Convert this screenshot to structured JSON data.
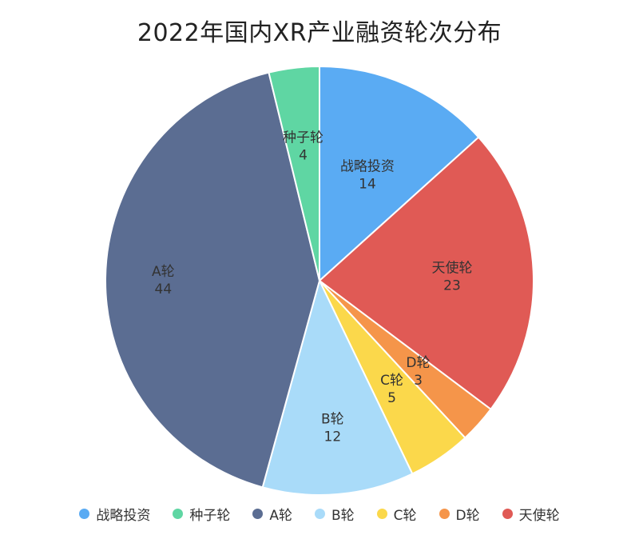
{
  "chart_data": {
    "type": "pie",
    "title": "2022年国内XR产业融资轮次分布",
    "categories": [
      "战略投资",
      "天使轮",
      "D轮",
      "C轮",
      "B轮",
      "A轮",
      "种子轮"
    ],
    "values": [
      14,
      23,
      3,
      5,
      12,
      44,
      4
    ],
    "colors": [
      "#5aabf3",
      "#e05a55",
      "#f5954a",
      "#fbd84b",
      "#a9dbf9",
      "#5b6d92",
      "#5fd6a3"
    ],
    "data_labels": true,
    "legend": {
      "position": "bottom",
      "items": [
        "战略投资",
        "种子轮",
        "A轮",
        "B轮",
        "C轮",
        "D轮",
        "天使轮"
      ],
      "colors": [
        "#5aabf3",
        "#5fd6a3",
        "#5b6d92",
        "#a9dbf9",
        "#fbd84b",
        "#f5954a",
        "#e05a55"
      ]
    }
  }
}
